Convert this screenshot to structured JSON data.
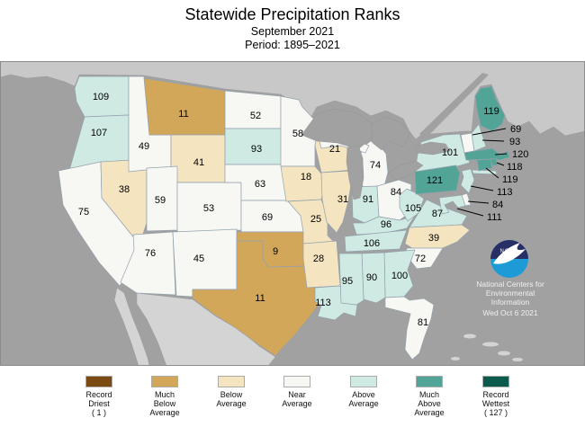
{
  "title": "Statewide Precipitation Ranks",
  "subtitle": "September 2021",
  "period": "Period: 1895–2021",
  "colors": {
    "record_driest": "#7a4a12",
    "much_below": "#d3a75a",
    "below": "#f4e4c0",
    "near": "#f7f7f4",
    "above": "#cfe9e3",
    "much_above": "#52a496",
    "record_wettest": "#0b5a4c",
    "ocean": "#a1a1a1",
    "canada": "#c8c8c8",
    "mexico": "#d4d4d4",
    "state_border": "#93a1ad",
    "noaa_navy": "#272f66",
    "noaa_blue": "#1d9bd7"
  },
  "map": {
    "states": [
      {
        "abbr": "WA",
        "value": 109,
        "category": "above"
      },
      {
        "abbr": "OR",
        "value": 107,
        "category": "above"
      },
      {
        "abbr": "CA",
        "value": 75,
        "category": "near"
      },
      {
        "abbr": "NV",
        "value": 38,
        "category": "below"
      },
      {
        "abbr": "ID",
        "value": 49,
        "category": "near"
      },
      {
        "abbr": "MT",
        "value": 11,
        "category": "much_below"
      },
      {
        "abbr": "WY",
        "value": 41,
        "category": "below"
      },
      {
        "abbr": "UT",
        "value": 59,
        "category": "near"
      },
      {
        "abbr": "CO",
        "value": 53,
        "category": "near"
      },
      {
        "abbr": "AZ",
        "value": 76,
        "category": "near"
      },
      {
        "abbr": "NM",
        "value": 45,
        "category": "near"
      },
      {
        "abbr": "ND",
        "value": 52,
        "category": "near"
      },
      {
        "abbr": "SD",
        "value": 93,
        "category": "above"
      },
      {
        "abbr": "NE",
        "value": 63,
        "category": "near"
      },
      {
        "abbr": "KS",
        "value": 69,
        "category": "near"
      },
      {
        "abbr": "OK",
        "value": 9,
        "category": "much_below"
      },
      {
        "abbr": "TX",
        "value": 11,
        "category": "much_below"
      },
      {
        "abbr": "MN",
        "value": 58,
        "category": "near"
      },
      {
        "abbr": "IA",
        "value": 18,
        "category": "below"
      },
      {
        "abbr": "MO",
        "value": 25,
        "category": "below"
      },
      {
        "abbr": "AR",
        "value": 28,
        "category": "below"
      },
      {
        "abbr": "LA",
        "value": 113,
        "category": "above"
      },
      {
        "abbr": "WI",
        "value": 21,
        "category": "below"
      },
      {
        "abbr": "IL",
        "value": 31,
        "category": "below"
      },
      {
        "abbr": "MI",
        "value": 74,
        "category": "near"
      },
      {
        "abbr": "IN",
        "value": 91,
        "category": "above"
      },
      {
        "abbr": "OH",
        "value": 84,
        "category": "near"
      },
      {
        "abbr": "KY",
        "value": 96,
        "category": "above"
      },
      {
        "abbr": "TN",
        "value": 106,
        "category": "above"
      },
      {
        "abbr": "WV",
        "value": 105,
        "category": "above"
      },
      {
        "abbr": "VA",
        "value": 87,
        "category": "above"
      },
      {
        "abbr": "NC",
        "value": 39,
        "category": "below"
      },
      {
        "abbr": "SC",
        "value": 72,
        "category": "near"
      },
      {
        "abbr": "GA",
        "value": 100,
        "category": "above"
      },
      {
        "abbr": "AL",
        "value": 90,
        "category": "above"
      },
      {
        "abbr": "MS",
        "value": 95,
        "category": "above"
      },
      {
        "abbr": "FL",
        "value": 81,
        "category": "near"
      },
      {
        "abbr": "PA",
        "value": 121,
        "category": "much_above"
      },
      {
        "abbr": "NY",
        "value": 101,
        "category": "above"
      },
      {
        "abbr": "ME",
        "value": 119,
        "category": "much_above"
      },
      {
        "abbr": "VT",
        "value": 69,
        "category": "near",
        "callout": true
      },
      {
        "abbr": "NH",
        "value": 93,
        "category": "above",
        "callout": true
      },
      {
        "abbr": "MA",
        "value": 120,
        "category": "much_above",
        "callout": true
      },
      {
        "abbr": "RI",
        "value": 118,
        "category": "much_above",
        "callout": true
      },
      {
        "abbr": "CT",
        "value": 119,
        "category": "much_above",
        "callout": true
      },
      {
        "abbr": "NJ",
        "value": 113,
        "category": "above",
        "callout": true
      },
      {
        "abbr": "DE",
        "value": 84,
        "category": "near",
        "callout": true
      },
      {
        "abbr": "MD",
        "value": 111,
        "category": "above",
        "callout": true
      }
    ]
  },
  "noaa": {
    "logo_text": "NOAA",
    "org_lines": [
      "National Centers for",
      "Environmental",
      "Information"
    ],
    "date": "Wed Oct  6 2021"
  },
  "legend": {
    "items": [
      {
        "category": "record_driest",
        "lines": [
          "Record",
          "Driest",
          "( 1 )"
        ]
      },
      {
        "category": "much_below",
        "lines": [
          "Much",
          "Below",
          "Average"
        ]
      },
      {
        "category": "below",
        "lines": [
          "Below",
          "Average"
        ]
      },
      {
        "category": "near",
        "lines": [
          "Near",
          "Average"
        ]
      },
      {
        "category": "above",
        "lines": [
          "Above",
          "Average"
        ]
      },
      {
        "category": "much_above",
        "lines": [
          "Much",
          "Above",
          "Average"
        ]
      },
      {
        "category": "record_wettest",
        "lines": [
          "Record",
          "Wettest",
          "( 127 )"
        ]
      }
    ]
  }
}
